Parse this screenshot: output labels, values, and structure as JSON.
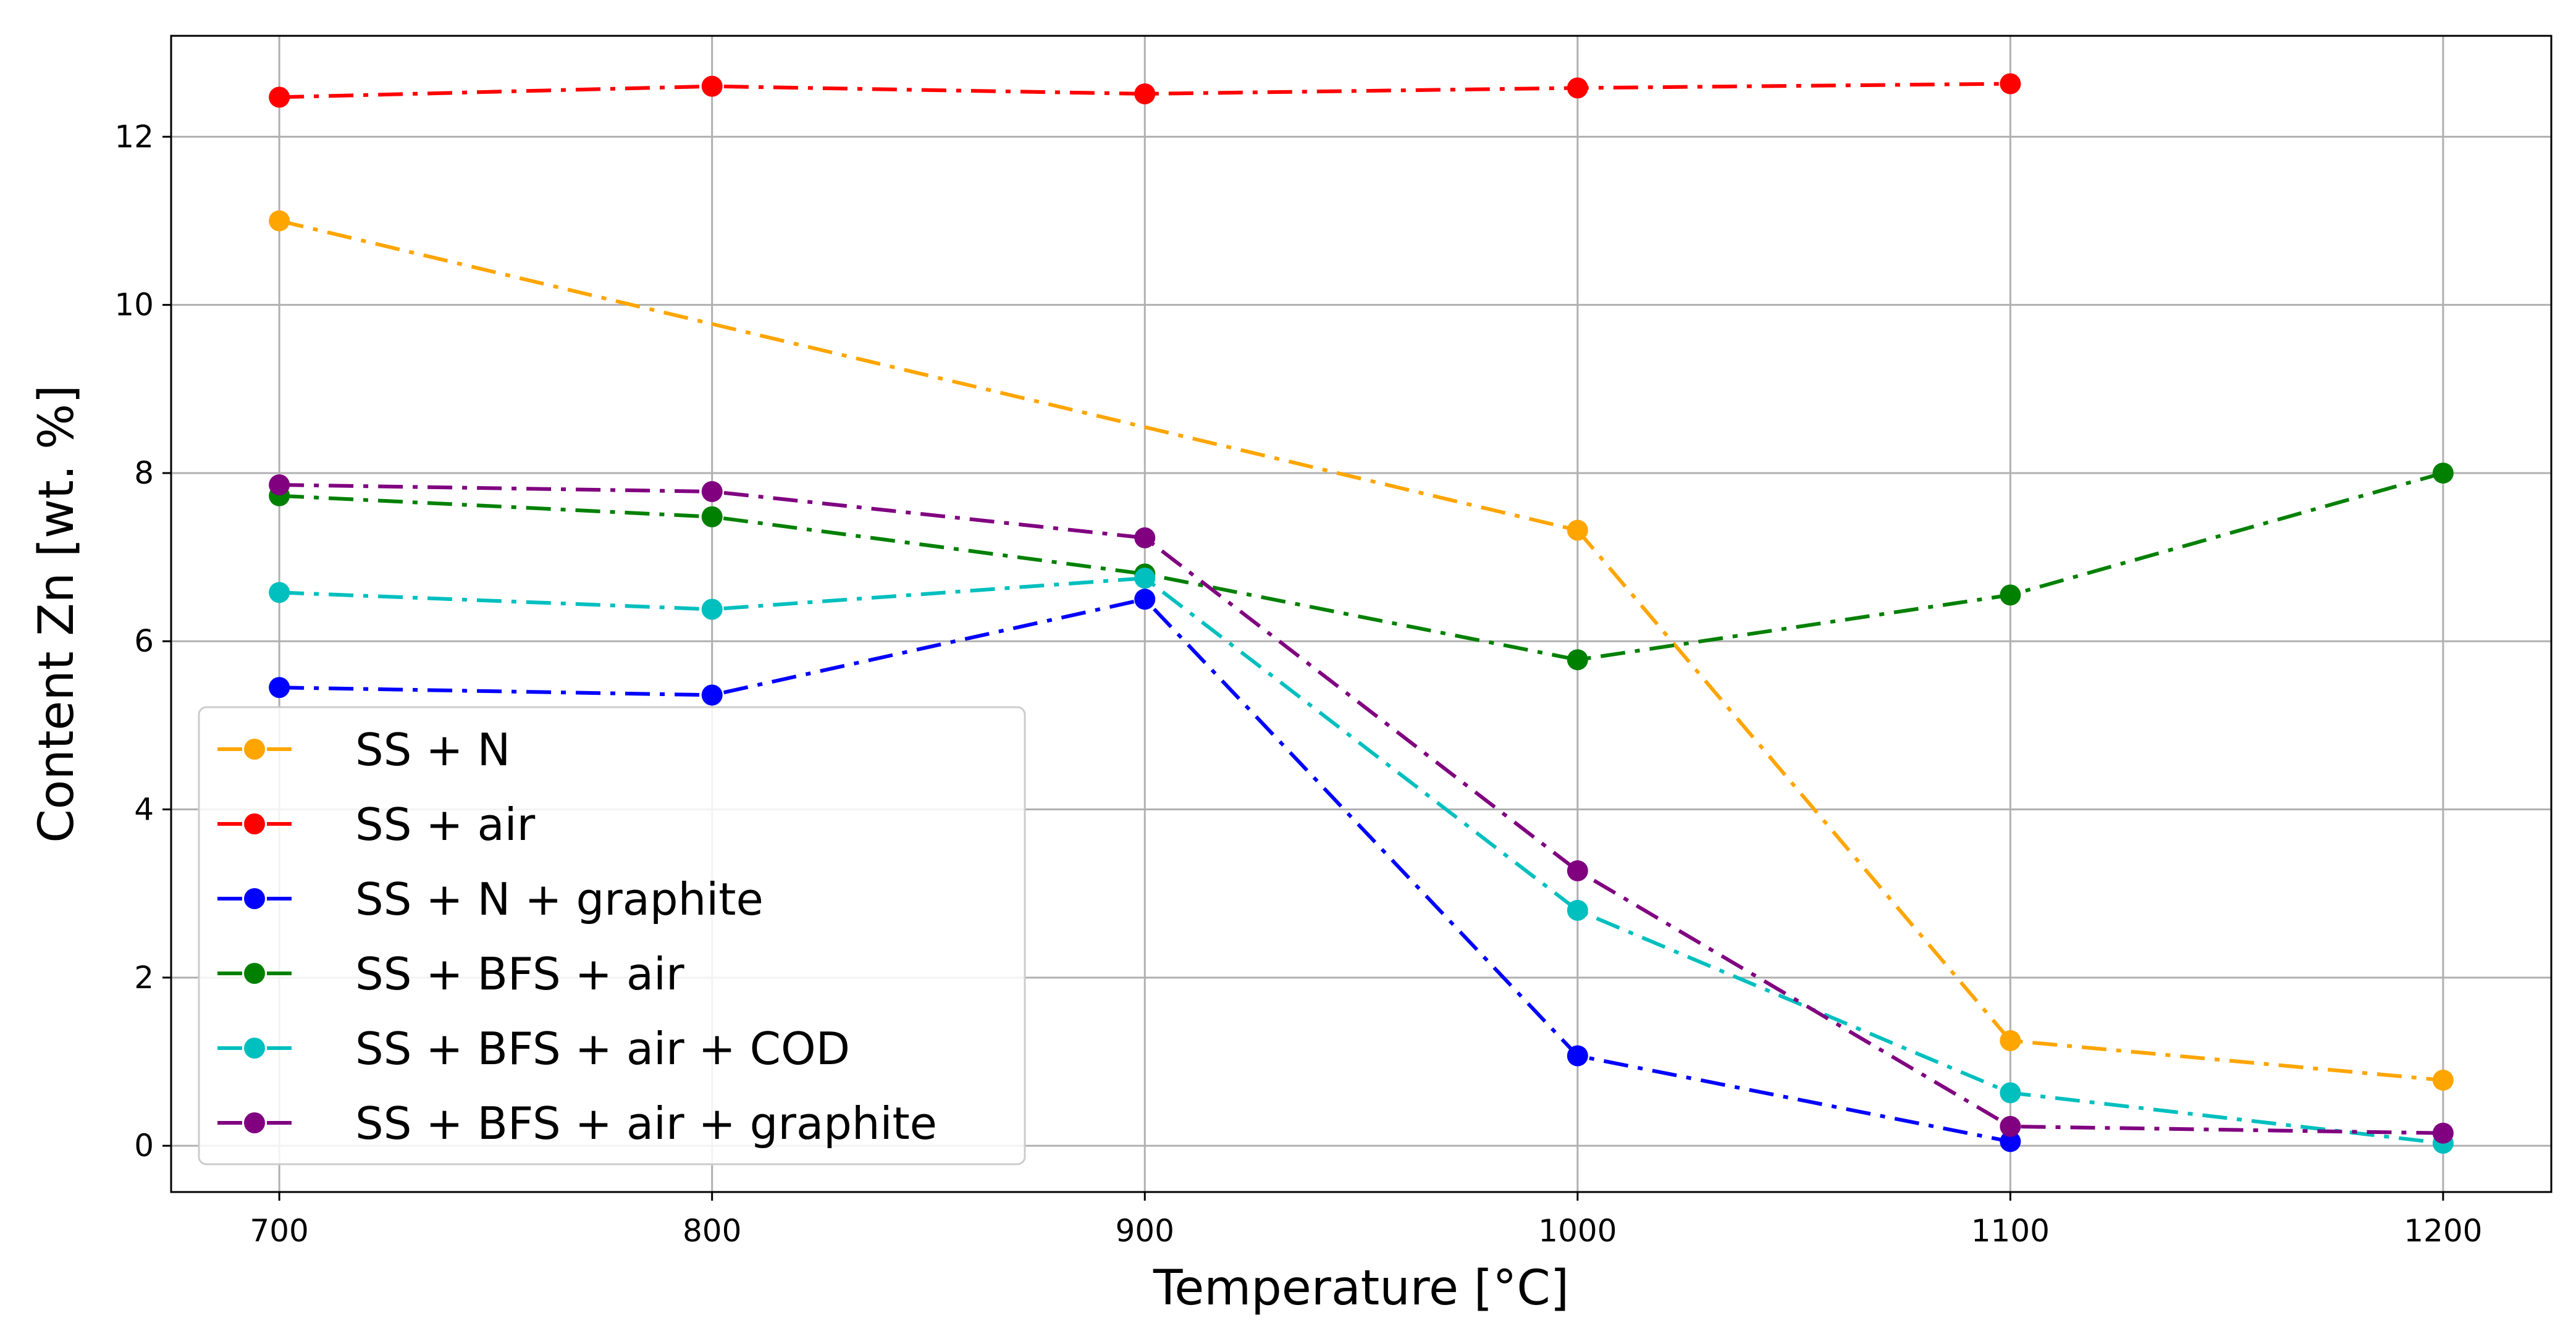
{
  "chart_data": {
    "type": "line",
    "title": "",
    "xlabel": "Temperature [°C]",
    "ylabel": "Content Zn [wt. %]",
    "xlim": [
      675,
      1225
    ],
    "ylim": [
      -0.55,
      13.2
    ],
    "x_ticks": [
      700,
      800,
      900,
      1000,
      1100,
      1200
    ],
    "y_ticks": [
      0,
      2,
      4,
      6,
      8,
      10,
      12
    ],
    "grid": true,
    "legend_position": "lower-left",
    "series": [
      {
        "name": "SS + N",
        "color": "#ffa500",
        "x": [
          700,
          1000,
          1100,
          1200
        ],
        "values": [
          11.0,
          7.32,
          1.25,
          0.78
        ]
      },
      {
        "name": "SS + air",
        "color": "#ff0000",
        "x": [
          700,
          800,
          900,
          1000,
          1100
        ],
        "values": [
          12.47,
          12.6,
          12.51,
          12.58,
          12.63
        ]
      },
      {
        "name": "SS + N + graphite",
        "color": "#0000ff",
        "x": [
          700,
          800,
          900,
          1000,
          1100
        ],
        "values": [
          5.45,
          5.36,
          6.5,
          1.07,
          0.05
        ]
      },
      {
        "name": "SS + BFS + air",
        "color": "#008000",
        "x": [
          700,
          800,
          900,
          1000,
          1100,
          1200
        ],
        "values": [
          7.73,
          7.48,
          6.8,
          5.78,
          6.55,
          8.0
        ]
      },
      {
        "name": "SS + BFS + air + COD",
        "color": "#00bfbf",
        "x": [
          700,
          800,
          900,
          1000,
          1100,
          1200
        ],
        "values": [
          6.58,
          6.38,
          6.75,
          2.8,
          0.63,
          0.03
        ]
      },
      {
        "name": "SS + BFS + air + graphite",
        "color": "#800080",
        "x": [
          700,
          800,
          900,
          1000,
          1100,
          1200
        ],
        "values": [
          7.86,
          7.78,
          7.23,
          3.27,
          0.23,
          0.15
        ]
      }
    ]
  }
}
